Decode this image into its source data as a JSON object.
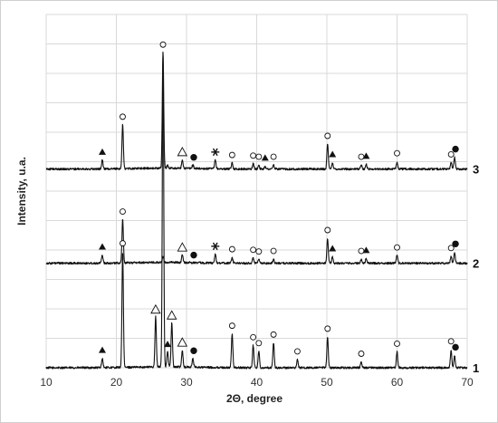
{
  "chart_data": {
    "type": "line",
    "title": "",
    "xlabel": "2Θ, degree",
    "ylabel": "Intensity, u.a.",
    "xlim": [
      10,
      70
    ],
    "x_ticks": [
      "10",
      "20",
      "30",
      "40",
      "50",
      "60",
      "70"
    ],
    "grid": true,
    "colors": {
      "trace": "#111111",
      "grid": "#d9d9d9"
    },
    "series": [
      {
        "name": "1",
        "baseline": 0.0,
        "peaks": [
          {
            "x": 18.0,
            "h": 0.32
          },
          {
            "x": 20.9,
            "h": 3.95
          },
          {
            "x": 25.6,
            "h": 1.7
          },
          {
            "x": 26.65,
            "h": 10.6
          },
          {
            "x": 27.3,
            "h": 0.52
          },
          {
            "x": 27.9,
            "h": 1.5
          },
          {
            "x": 29.4,
            "h": 0.58
          },
          {
            "x": 30.9,
            "h": 0.3
          },
          {
            "x": 36.5,
            "h": 1.15
          },
          {
            "x": 39.5,
            "h": 0.76
          },
          {
            "x": 40.3,
            "h": 0.56
          },
          {
            "x": 42.4,
            "h": 0.85
          },
          {
            "x": 45.8,
            "h": 0.28
          },
          {
            "x": 50.1,
            "h": 1.05
          },
          {
            "x": 54.9,
            "h": 0.2
          },
          {
            "x": 60.0,
            "h": 0.54
          },
          {
            "x": 67.7,
            "h": 0.62
          },
          {
            "x": 68.2,
            "h": 0.42
          }
        ],
        "markers": [
          {
            "x": 18.0,
            "type": "filled-triangle"
          },
          {
            "x": 20.9,
            "type": "open-circle"
          },
          {
            "x": 25.6,
            "type": "open-triangle"
          },
          {
            "x": 27.3,
            "type": "filled-triangle"
          },
          {
            "x": 27.9,
            "type": "open-triangle"
          },
          {
            "x": 29.4,
            "type": "open-triangle"
          },
          {
            "x": 30.9,
            "type": "filled-circle"
          },
          {
            "x": 36.5,
            "type": "open-circle"
          },
          {
            "x": 39.5,
            "type": "open-circle"
          },
          {
            "x": 40.3,
            "type": "open-circle"
          },
          {
            "x": 42.4,
            "type": "open-circle"
          },
          {
            "x": 45.8,
            "type": "open-circle"
          },
          {
            "x": 50.1,
            "type": "open-circle"
          },
          {
            "x": 54.9,
            "type": "open-circle"
          },
          {
            "x": 60.0,
            "type": "open-circle"
          },
          {
            "x": 67.7,
            "type": "open-circle"
          },
          {
            "x": 68.2,
            "type": "filled-circle"
          }
        ]
      },
      {
        "name": "2",
        "baseline": 3.55,
        "peaks": [
          {
            "x": 18.0,
            "h": 0.28
          },
          {
            "x": 20.9,
            "h": 1.48
          },
          {
            "x": 26.65,
            "h": 0.18
          },
          {
            "x": 29.4,
            "h": 0.26
          },
          {
            "x": 34.1,
            "h": 0.3
          },
          {
            "x": 36.5,
            "h": 0.2
          },
          {
            "x": 39.5,
            "h": 0.18
          },
          {
            "x": 40.3,
            "h": 0.12
          },
          {
            "x": 42.4,
            "h": 0.14
          },
          {
            "x": 50.1,
            "h": 0.85
          },
          {
            "x": 50.8,
            "h": 0.22
          },
          {
            "x": 54.9,
            "h": 0.14
          },
          {
            "x": 55.6,
            "h": 0.16
          },
          {
            "x": 60.0,
            "h": 0.26
          },
          {
            "x": 67.7,
            "h": 0.24
          },
          {
            "x": 68.2,
            "h": 0.38
          }
        ],
        "markers": [
          {
            "x": 18.0,
            "type": "filled-triangle"
          },
          {
            "x": 20.9,
            "type": "open-circle"
          },
          {
            "x": 29.4,
            "type": "open-triangle"
          },
          {
            "x": 30.9,
            "type": "filled-circle"
          },
          {
            "x": 34.1,
            "type": "asterisk"
          },
          {
            "x": 36.5,
            "type": "open-circle"
          },
          {
            "x": 39.5,
            "type": "open-circle"
          },
          {
            "x": 40.3,
            "type": "open-circle"
          },
          {
            "x": 42.4,
            "type": "open-circle"
          },
          {
            "x": 50.1,
            "type": "open-circle"
          },
          {
            "x": 50.8,
            "type": "filled-triangle"
          },
          {
            "x": 54.9,
            "type": "open-circle"
          },
          {
            "x": 55.6,
            "type": "filled-triangle"
          },
          {
            "x": 60.0,
            "type": "open-circle"
          },
          {
            "x": 67.7,
            "type": "open-circle"
          },
          {
            "x": 68.2,
            "type": "filled-circle"
          }
        ]
      },
      {
        "name": "3",
        "baseline": 6.75,
        "peaks": [
          {
            "x": 18.0,
            "h": 0.3
          },
          {
            "x": 20.9,
            "h": 1.5
          },
          {
            "x": 26.65,
            "h": 3.95
          },
          {
            "x": 27.3,
            "h": 0.1
          },
          {
            "x": 29.4,
            "h": 0.3
          },
          {
            "x": 30.9,
            "h": 0.12
          },
          {
            "x": 34.1,
            "h": 0.3
          },
          {
            "x": 36.5,
            "h": 0.2
          },
          {
            "x": 39.5,
            "h": 0.18
          },
          {
            "x": 40.3,
            "h": 0.14
          },
          {
            "x": 41.2,
            "h": 0.1
          },
          {
            "x": 42.4,
            "h": 0.14
          },
          {
            "x": 50.1,
            "h": 0.85
          },
          {
            "x": 50.8,
            "h": 0.22
          },
          {
            "x": 54.9,
            "h": 0.14
          },
          {
            "x": 55.6,
            "h": 0.16
          },
          {
            "x": 60.0,
            "h": 0.26
          },
          {
            "x": 67.7,
            "h": 0.22
          },
          {
            "x": 68.2,
            "h": 0.4
          }
        ],
        "markers": [
          {
            "x": 18.0,
            "type": "filled-triangle"
          },
          {
            "x": 20.9,
            "type": "open-circle"
          },
          {
            "x": 26.65,
            "type": "open-circle"
          },
          {
            "x": 29.4,
            "type": "open-triangle"
          },
          {
            "x": 30.9,
            "type": "filled-circle"
          },
          {
            "x": 34.1,
            "type": "asterisk"
          },
          {
            "x": 36.5,
            "type": "open-circle"
          },
          {
            "x": 39.5,
            "type": "open-circle"
          },
          {
            "x": 40.3,
            "type": "open-circle"
          },
          {
            "x": 41.2,
            "type": "filled-triangle"
          },
          {
            "x": 42.4,
            "type": "open-circle"
          },
          {
            "x": 50.1,
            "type": "open-circle"
          },
          {
            "x": 50.8,
            "type": "filled-triangle"
          },
          {
            "x": 54.9,
            "type": "open-circle"
          },
          {
            "x": 55.6,
            "type": "filled-triangle"
          },
          {
            "x": 60.0,
            "type": "open-circle"
          },
          {
            "x": 67.7,
            "type": "open-circle"
          },
          {
            "x": 68.2,
            "type": "filled-circle"
          }
        ]
      }
    ]
  }
}
